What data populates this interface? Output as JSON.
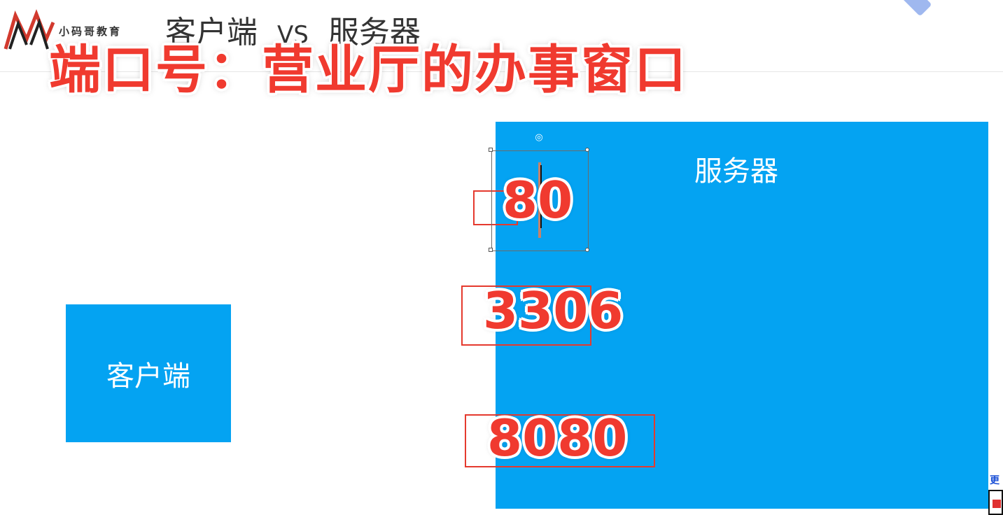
{
  "header": {
    "brand": "小码哥教育",
    "title_left": "客户端",
    "title_vs": "VS",
    "title_right": "服务器"
  },
  "caption": "端口号：营业厅的办事窗口",
  "diagram": {
    "client_label": "客户端",
    "server_label": "服务器",
    "ports": [
      "80",
      "3306",
      "8080"
    ]
  },
  "corner_widget": {
    "text": "更"
  },
  "colors": {
    "box_blue": "#04a3f2",
    "caption_red": "#f03a2f",
    "frame_red": "#e53a2e"
  },
  "icons": [
    "logo-icon",
    "rotate-handle-icon",
    "qr-code-icon"
  ]
}
